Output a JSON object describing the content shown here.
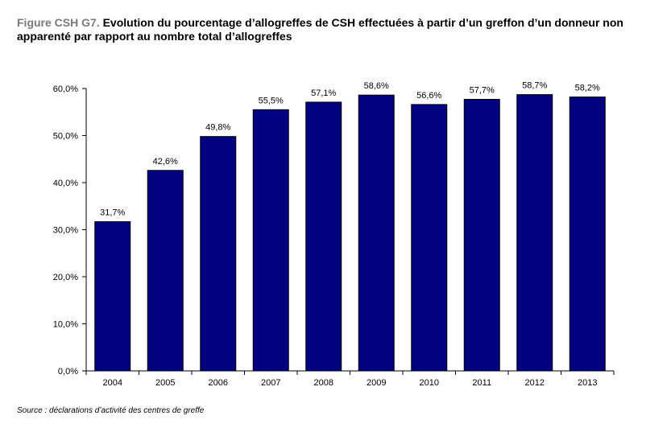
{
  "figure": {
    "label": "Figure CSH G7.",
    "title": "Evolution du pourcentage d’allogreffes de CSH effectuées à partir d’un greffon d’un donneur non apparenté par rapport au nombre total d’allogreffes"
  },
  "source": "Source : déclarations d’activité des centres de greffe",
  "chart_data": {
    "type": "bar",
    "categories": [
      "2004",
      "2005",
      "2006",
      "2007",
      "2008",
      "2009",
      "2010",
      "2011",
      "2012",
      "2013"
    ],
    "values": [
      31.7,
      42.6,
      49.8,
      55.5,
      57.1,
      58.6,
      56.6,
      57.7,
      58.7,
      58.2
    ],
    "data_labels": [
      "31,7%",
      "42,6%",
      "49,8%",
      "55,5%",
      "57,1%",
      "58,6%",
      "56,6%",
      "57,7%",
      "58,7%",
      "58,2%"
    ],
    "y_ticks": [
      0,
      10,
      20,
      30,
      40,
      50,
      60
    ],
    "y_tick_labels": [
      "0,0%",
      "10,0%",
      "20,0%",
      "30,0%",
      "40,0%",
      "50,0%",
      "60,0%"
    ],
    "ylim": [
      0,
      60
    ],
    "grid": false,
    "legend": false,
    "bar_color": "#000080",
    "xlabel": "",
    "ylabel": ""
  }
}
